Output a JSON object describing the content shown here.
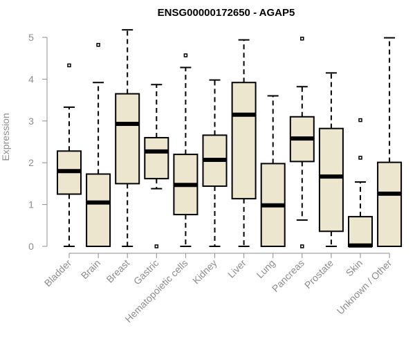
{
  "chart_data": {
    "type": "boxplot",
    "title": "ENSG00000172650 - AGAP5",
    "ylabel": "Expression",
    "xlabel": "",
    "ylim": [
      0,
      5.2
    ],
    "yticks": [
      0,
      1,
      2,
      3,
      4,
      5
    ],
    "grid": false,
    "box_color": "#ede6cf",
    "categories": [
      "Bladder",
      "Brain",
      "Breast",
      "Gastric",
      "Hematopoietic cells",
      "Kidney",
      "Liver",
      "Lung",
      "Pancreas",
      "Prostate",
      "Skin",
      "Unknown / Other"
    ],
    "series": [
      {
        "category": "Bladder",
        "min": 0,
        "q1": 1.25,
        "median": 1.8,
        "q3": 2.28,
        "max": 3.33,
        "outliers": [
          4.33
        ]
      },
      {
        "category": "Brain",
        "min": 0,
        "q1": 0,
        "median": 1.05,
        "q3": 1.73,
        "max": 3.92,
        "outliers": [
          4.82
        ]
      },
      {
        "category": "Breast",
        "min": 0,
        "q1": 1.5,
        "median": 2.93,
        "q3": 3.65,
        "max": 5.18,
        "outliers": []
      },
      {
        "category": "Gastric",
        "min": 1.38,
        "q1": 1.62,
        "median": 2.27,
        "q3": 2.6,
        "max": 3.87,
        "outliers": [
          0
        ]
      },
      {
        "category": "Hematopoietic cells",
        "min": 0,
        "q1": 0.76,
        "median": 1.47,
        "q3": 2.2,
        "max": 4.28,
        "outliers": [
          4.57
        ]
      },
      {
        "category": "Kidney",
        "min": 0,
        "q1": 1.44,
        "median": 2.07,
        "q3": 2.66,
        "max": 3.98,
        "outliers": []
      },
      {
        "category": "Liver",
        "min": 0,
        "q1": 1.14,
        "median": 3.15,
        "q3": 3.92,
        "max": 4.94,
        "outliers": []
      },
      {
        "category": "Lung",
        "min": 0,
        "q1": 0,
        "median": 0.98,
        "q3": 1.98,
        "max": 3.6,
        "outliers": []
      },
      {
        "category": "Pancreas",
        "min": 0.63,
        "q1": 2.03,
        "median": 2.58,
        "q3": 3.1,
        "max": 3.82,
        "outliers": [
          0,
          4.97
        ]
      },
      {
        "category": "Prostate",
        "min": 0,
        "q1": 0.36,
        "median": 1.67,
        "q3": 2.82,
        "max": 4.15,
        "outliers": []
      },
      {
        "category": "Skin",
        "min": 0,
        "q1": 0,
        "median": 0.02,
        "q3": 0.71,
        "max": 1.54,
        "outliers": [
          2.12,
          3.02
        ]
      },
      {
        "category": "Unknown / Other",
        "min": 0,
        "q1": 0,
        "median": 1.26,
        "q3": 2.01,
        "max": 4.99,
        "outliers": []
      }
    ]
  }
}
